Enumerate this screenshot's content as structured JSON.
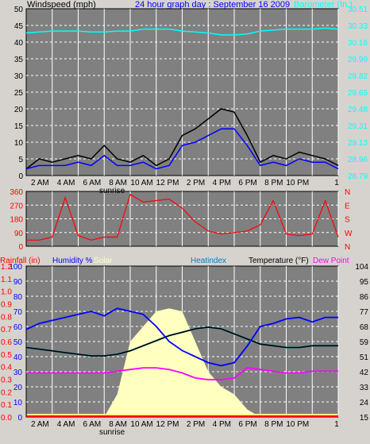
{
  "header": {
    "left": "Windspeed (mph)",
    "title": "24 hour graph day : September 16 2009",
    "right": "Barometer (In.)"
  },
  "colors": {
    "bg": "#d6d3ce",
    "plot": "#808080",
    "grid": "#ffffff",
    "wind_avg": "#0000ff",
    "wind_gust": "#000000",
    "wind_low": "#ffffff",
    "barometer": "#00ffff",
    "direction": "#ff0000",
    "humidity": "#0000ff",
    "temperature": "#000000",
    "dewpoint": "#ff00ff",
    "heatindex": "#00b0d0",
    "solar": "#ffffc0",
    "rainfall": "#ff0000"
  },
  "time_labels": [
    "2 AM",
    "4 AM",
    "6 AM",
    "8 AM",
    "10 AM",
    "12 PM",
    "2 PM",
    "4 PM",
    "6 PM",
    "8 PM",
    "10 PM"
  ],
  "end_tick": "1",
  "sunrise_label": "sunrise",
  "legend": {
    "rainfall": "Rainfall (in)",
    "humidity": "Humidity %",
    "solar": "Solar",
    "heatindex": "Heatindex",
    "temperature": "Temperature (°F)",
    "dewpoint": "Dew Point"
  },
  "chart_data": [
    {
      "type": "line",
      "title": "24 hour graph day : September 16 2009",
      "ylabel": "Windspeed (mph)",
      "y2label": "Barometer (In.)",
      "x_hours": [
        0,
        1,
        2,
        3,
        4,
        5,
        6,
        7,
        8,
        9,
        10,
        11,
        12,
        13,
        14,
        15,
        16,
        17,
        18,
        19,
        20,
        21,
        22,
        23,
        24
      ],
      "ylim": [
        0,
        50
      ],
      "yticks": [
        "0",
        "5",
        "10",
        "15",
        "20",
        "25",
        "30",
        "35",
        "40",
        "45",
        "50"
      ],
      "y2lim": [
        28.79,
        30.51
      ],
      "y2ticks": [
        "28.79",
        "28.96",
        "29.13",
        "29.31",
        "29.48",
        "29.65",
        "29.82",
        "29.99",
        "30.16",
        "30.33",
        "30.51"
      ],
      "series": [
        {
          "name": "Wind gust",
          "values": [
            2,
            5,
            4,
            5,
            6,
            5,
            9,
            5,
            4,
            6,
            3,
            5,
            12,
            14,
            17,
            20,
            19,
            12,
            4,
            6,
            5,
            7,
            6,
            5,
            3
          ]
        },
        {
          "name": "Wind average",
          "values": [
            2,
            3,
            3,
            3,
            4,
            3,
            6,
            3,
            3,
            4,
            2,
            3,
            9,
            10,
            12,
            14,
            14,
            9,
            3,
            4,
            3,
            5,
            4,
            4,
            2
          ]
        },
        {
          "name": "Barometer",
          "values": [
            30.26,
            30.27,
            30.28,
            30.28,
            30.28,
            30.27,
            30.27,
            30.28,
            30.28,
            30.3,
            30.3,
            30.3,
            30.28,
            30.27,
            30.26,
            30.24,
            30.24,
            30.25,
            30.28,
            30.29,
            30.3,
            30.3,
            30.3,
            30.31,
            30.3
          ]
        }
      ]
    },
    {
      "type": "line",
      "ylabel": "Wind direction",
      "ylim": [
        0,
        360
      ],
      "yticks": [
        "0",
        "90",
        "180",
        "270",
        "360"
      ],
      "y2ticks": [
        "N",
        "W",
        "S",
        "E",
        "N"
      ],
      "x_hours": [
        0,
        1,
        2,
        3,
        4,
        5,
        6,
        7,
        8,
        9,
        10,
        11,
        12,
        13,
        14,
        15,
        16,
        17,
        18,
        19,
        20,
        21,
        22,
        23,
        24
      ],
      "series": [
        {
          "name": "Wind direction",
          "values": [
            40,
            40,
            60,
            320,
            70,
            40,
            60,
            60,
            340,
            290,
            300,
            310,
            250,
            160,
            100,
            80,
            90,
            100,
            140,
            300,
            80,
            70,
            80,
            300,
            60
          ]
        }
      ]
    },
    {
      "type": "line",
      "x_hours": [
        0,
        1,
        2,
        3,
        4,
        5,
        6,
        7,
        8,
        9,
        10,
        11,
        12,
        13,
        14,
        15,
        16,
        17,
        18,
        19,
        20,
        21,
        22,
        23,
        24
      ],
      "y_left_outer": {
        "label": "Rainfall (in)",
        "ticks": [
          "0.0",
          "0.1",
          "0.2",
          "0.3",
          "0.4",
          "0.5",
          "0.6",
          "0.7",
          "0.8",
          "0.9",
          "1.0",
          "1.1",
          "1.2"
        ],
        "lim": [
          0,
          1.2
        ]
      },
      "y_left_inner": {
        "label": "Humidity %",
        "ticks": [
          "0",
          "10",
          "20",
          "30",
          "40",
          "50",
          "60",
          "70",
          "80",
          "90",
          "100"
        ],
        "lim": [
          0,
          100
        ]
      },
      "y_right": {
        "label": "Temperature (°F)",
        "ticks": [
          "15",
          "24",
          "33",
          "42",
          "51",
          "59",
          "68",
          "77",
          "86",
          "95",
          "104"
        ],
        "lim": [
          15,
          104
        ]
      },
      "series": [
        {
          "name": "Humidity %",
          "values": [
            58,
            62,
            64,
            66,
            68,
            70,
            67,
            72,
            70,
            68,
            60,
            50,
            44,
            40,
            36,
            34,
            36,
            47,
            60,
            62,
            65,
            66,
            63,
            66,
            66
          ]
        },
        {
          "name": "Temperature",
          "values": [
            56,
            55,
            54,
            53,
            52,
            51,
            51,
            52,
            54,
            57,
            60,
            63,
            65,
            67,
            68,
            67,
            64,
            61,
            58,
            57,
            56,
            56,
            57,
            57,
            57
          ]
        },
        {
          "name": "Heatindex",
          "values": [
            56,
            55,
            54,
            53,
            52,
            51,
            51,
            52,
            54,
            57,
            60,
            63,
            65,
            67,
            68,
            67,
            64,
            61,
            58,
            57,
            56,
            56,
            57,
            57,
            57
          ]
        },
        {
          "name": "Dew Point",
          "values": [
            41,
            41,
            41,
            41,
            41,
            41,
            41,
            42,
            43,
            44,
            44,
            43,
            41,
            38,
            37,
            37,
            38,
            44,
            43,
            42,
            41,
            41,
            42,
            42,
            42
          ]
        },
        {
          "name": "Solar",
          "values": [
            0,
            0,
            0,
            0,
            0,
            0,
            0,
            15,
            50,
            60,
            70,
            72,
            70,
            50,
            30,
            20,
            15,
            5,
            0,
            0,
            0,
            0,
            0,
            0,
            0
          ]
        },
        {
          "name": "Rainfall",
          "values": [
            0,
            0,
            0,
            0,
            0,
            0,
            0,
            0,
            0,
            0,
            0,
            0,
            0,
            0,
            0,
            0,
            0,
            0,
            0,
            0,
            0,
            0,
            0,
            0,
            0
          ]
        }
      ]
    }
  ]
}
